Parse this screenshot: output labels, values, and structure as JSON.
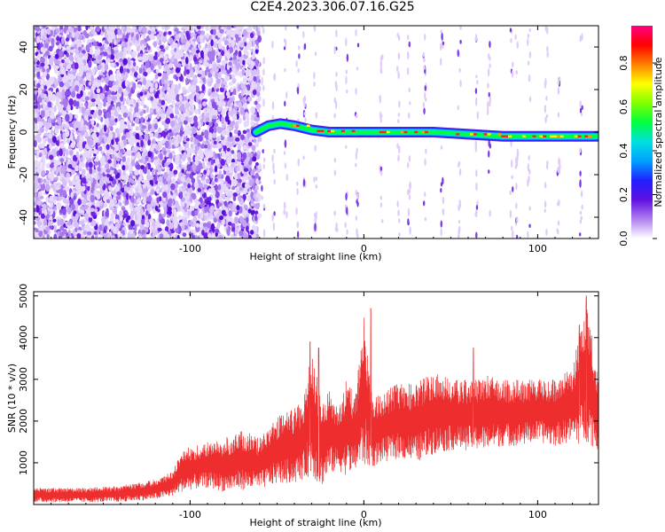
{
  "title": "C2E4.2023.306.07.16.G25",
  "chart_data": [
    {
      "type": "heatmap",
      "title": "",
      "xlabel": "Height of straight line (km)",
      "ylabel": "Frequency (Hz)",
      "xlim": [
        -190,
        135
      ],
      "ylim": [
        -50,
        50
      ],
      "x_ticks": [
        -100,
        0,
        100
      ],
      "x_tick_labels": [
        "-100",
        "0",
        "100"
      ],
      "y_ticks": [
        -40,
        -20,
        0,
        20,
        40
      ],
      "y_tick_labels": [
        "-40",
        "-20",
        "0",
        "20",
        "40"
      ],
      "colorbar": {
        "label": "Normalized spectral amplitude",
        "range": [
          0.0,
          0.97
        ],
        "ticks": [
          0.0,
          0.2,
          0.4,
          0.6,
          0.8
        ],
        "tick_labels": [
          "0.0",
          "0.2",
          "0.4",
          "0.6",
          "0.8"
        ],
        "colormap": [
          "#ffffff",
          "#b080f0",
          "#6010e0",
          "#2020ff",
          "#00a0ff",
          "#00e0e0",
          "#00ff40",
          "#80ff00",
          "#ffff00",
          "#ff8000",
          "#ff0000",
          "#ff0080"
        ]
      },
      "signal_track": {
        "description_points": [
          [
            -62,
            0
          ],
          [
            -55,
            3
          ],
          [
            -48,
            4
          ],
          [
            -40,
            3
          ],
          [
            -30,
            1
          ],
          [
            -20,
            0
          ],
          [
            -10,
            0
          ],
          [
            0,
            0
          ],
          [
            20,
            0
          ],
          [
            40,
            0
          ],
          [
            60,
            -1
          ],
          [
            80,
            -2
          ],
          [
            100,
            -2
          ],
          [
            120,
            -2
          ],
          [
            135,
            -2
          ]
        ]
      },
      "noise_region_xmax": -60
    },
    {
      "type": "line",
      "title": "",
      "xlabel": "Height of straight line (km)",
      "ylabel": "SNR (10 * v/v)",
      "xlim": [
        -190,
        135
      ],
      "ylim": [
        0,
        5100
      ],
      "x_ticks": [
        -100,
        0,
        100
      ],
      "x_tick_labels": [
        "-100",
        "0",
        "100"
      ],
      "y_ticks": [
        1000,
        2000,
        3000,
        4000,
        5000
      ],
      "y_tick_labels": [
        "1000",
        "2000",
        "3000",
        "4000",
        "5000"
      ],
      "series": [
        {
          "color": "#ee2e2e",
          "envelope_x": [
            -190,
            -160,
            -140,
            -120,
            -110,
            -105,
            -100,
            -90,
            -80,
            -70,
            -60,
            -50,
            -40,
            -35,
            -30,
            -25,
            -20,
            -15,
            -10,
            -5,
            0,
            5,
            10,
            20,
            30,
            40,
            50,
            60,
            70,
            80,
            90,
            100,
            110,
            120,
            125,
            128,
            135
          ],
          "envelope_low": [
            50,
            50,
            60,
            120,
            200,
            300,
            350,
            400,
            300,
            350,
            350,
            500,
            500,
            600,
            700,
            400,
            700,
            800,
            700,
            800,
            900,
            900,
            1000,
            1100,
            1000,
            1200,
            1300,
            1300,
            1300,
            1400,
            1400,
            1500,
            1400,
            1500,
            1400,
            1500,
            1300
          ],
          "envelope_high": [
            400,
            400,
            450,
            600,
            800,
            1300,
            1400,
            1500,
            1600,
            1800,
            1600,
            2100,
            2300,
            2500,
            3800,
            2600,
            2800,
            2400,
            3000,
            2600,
            4600,
            2500,
            2700,
            2900,
            2900,
            3200,
            3000,
            3000,
            3100,
            3000,
            3000,
            3000,
            3000,
            3300,
            4300,
            5000,
            2900
          ],
          "peaks": [
            [
              -31,
              3900
            ],
            [
              -26,
              3750
            ],
            [
              4,
              4700
            ],
            [
              63,
              3750
            ],
            [
              124,
              4300
            ],
            [
              128,
              5000
            ]
          ]
        }
      ]
    }
  ]
}
